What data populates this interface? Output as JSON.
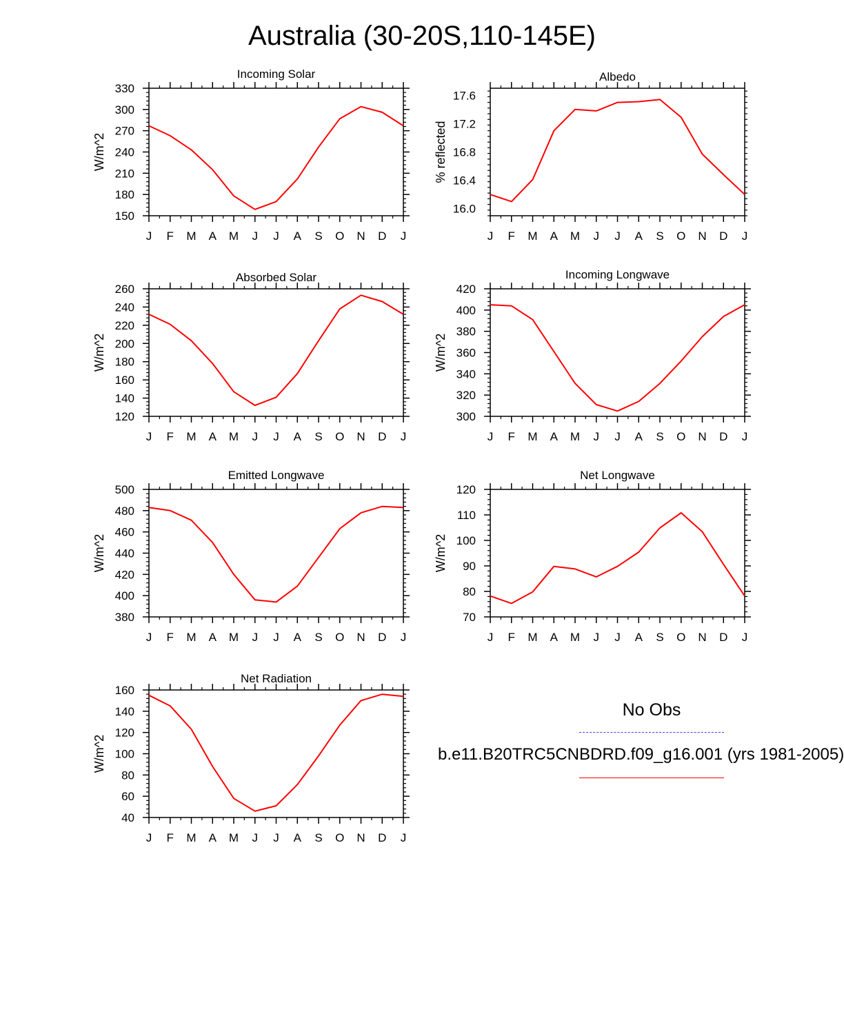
{
  "main_title": "Australia (30-20S,110-145E)",
  "legend": {
    "obs_label": "No Obs",
    "model_label": "b.e11.B20TRC5CNBDRD.f09_g16.001 (yrs 1981-2005)",
    "obs_color": "#3a3aff",
    "model_color": "#ff0000"
  },
  "chart_data": [
    {
      "type": "line",
      "title": "Incoming Solar",
      "ylabel": "W/m^2",
      "categories": [
        "J",
        "F",
        "M",
        "A",
        "M",
        "J",
        "J",
        "A",
        "S",
        "O",
        "N",
        "D",
        "J"
      ],
      "ylim": [
        150,
        330
      ],
      "yticks": [
        150,
        180,
        210,
        240,
        270,
        300,
        330
      ],
      "ytick_labels": [
        "150",
        "180",
        "210",
        "240",
        "270",
        "300",
        "330"
      ],
      "series": [
        {
          "name": "b.e11.B20TRC5CNBDRD.f09_g16.001",
          "color": "#ff0000",
          "values": [
            277,
            263,
            243,
            215,
            178,
            159,
            170,
            202,
            247,
            287,
            304,
            296,
            277
          ]
        }
      ]
    },
    {
      "type": "line",
      "title": "Albedo",
      "ylabel": "% reflected",
      "categories": [
        "J",
        "F",
        "M",
        "A",
        "M",
        "J",
        "J",
        "A",
        "S",
        "O",
        "N",
        "D",
        "J"
      ],
      "ylim": [
        15.9,
        17.7
      ],
      "yticks": [
        16.0,
        16.4,
        16.8,
        17.2,
        17.6
      ],
      "ytick_labels": [
        "16.0",
        "16.4",
        "16.8",
        "17.2",
        "17.6"
      ],
      "series": [
        {
          "name": "b.e11.B20TRC5CNBDRD.f09_g16.001",
          "color": "#ff0000",
          "values": [
            16.2,
            16.1,
            16.41,
            17.1,
            17.4,
            17.38,
            17.5,
            17.51,
            17.54,
            17.29,
            16.77,
            16.48,
            16.2
          ]
        }
      ]
    },
    {
      "type": "line",
      "title": "Absorbed Solar",
      "ylabel": "W/m^2",
      "categories": [
        "J",
        "F",
        "M",
        "A",
        "M",
        "J",
        "J",
        "A",
        "S",
        "O",
        "N",
        "D",
        "J"
      ],
      "ylim": [
        120,
        260
      ],
      "yticks": [
        120,
        140,
        160,
        180,
        200,
        220,
        240,
        260
      ],
      "ytick_labels": [
        "120",
        "140",
        "160",
        "180",
        "200",
        "220",
        "240",
        "260"
      ],
      "series": [
        {
          "name": "b.e11.B20TRC5CNBDRD.f09_g16.001",
          "color": "#ff0000",
          "values": [
            232,
            221,
            203,
            178,
            147,
            132,
            141,
            167,
            203,
            238,
            253,
            246,
            232
          ]
        }
      ]
    },
    {
      "type": "line",
      "title": "Incoming Longwave",
      "ylabel": "W/m^2",
      "categories": [
        "J",
        "F",
        "M",
        "A",
        "M",
        "J",
        "J",
        "A",
        "S",
        "O",
        "N",
        "D",
        "J"
      ],
      "ylim": [
        300,
        420
      ],
      "yticks": [
        300,
        320,
        340,
        360,
        380,
        400,
        420
      ],
      "ytick_labels": [
        "300",
        "320",
        "340",
        "360",
        "380",
        "400",
        "420"
      ],
      "series": [
        {
          "name": "b.e11.B20TRC5CNBDRD.f09_g16.001",
          "color": "#ff0000",
          "values": [
            405,
            404,
            391,
            361,
            331,
            311,
            305,
            314,
            331,
            352,
            375,
            394,
            405
          ]
        }
      ]
    },
    {
      "type": "line",
      "title": "Emitted Longwave",
      "ylabel": "W/m^2",
      "categories": [
        "J",
        "F",
        "M",
        "A",
        "M",
        "J",
        "J",
        "A",
        "S",
        "O",
        "N",
        "D",
        "J"
      ],
      "ylim": [
        380,
        500
      ],
      "yticks": [
        380,
        400,
        420,
        440,
        460,
        480,
        500
      ],
      "ytick_labels": [
        "380",
        "400",
        "420",
        "440",
        "460",
        "480",
        "500"
      ],
      "series": [
        {
          "name": "b.e11.B20TRC5CNBDRD.f09_g16.001",
          "color": "#ff0000",
          "values": [
            483,
            480,
            471,
            450,
            420,
            396,
            394,
            409,
            436,
            463,
            478,
            484,
            483
          ]
        }
      ]
    },
    {
      "type": "line",
      "title": "Net Longwave",
      "ylabel": "W/m^2",
      "categories": [
        "J",
        "F",
        "M",
        "A",
        "M",
        "J",
        "J",
        "A",
        "S",
        "O",
        "N",
        "D",
        "J"
      ],
      "ylim": [
        70,
        120
      ],
      "yticks": [
        70,
        80,
        90,
        100,
        110,
        120
      ],
      "ytick_labels": [
        "70",
        "80",
        "90",
        "100",
        "110",
        "120"
      ],
      "series": [
        {
          "name": "b.e11.B20TRC5CNBDRD.f09_g16.001",
          "color": "#ff0000",
          "values": [
            78.2,
            75.3,
            79.8,
            89.8,
            88.8,
            85.7,
            89.8,
            95.4,
            104.9,
            110.8,
            103.4,
            90.6,
            78.2
          ]
        }
      ]
    },
    {
      "type": "line",
      "title": "Net Radiation",
      "ylabel": "W/m^2",
      "categories": [
        "J",
        "F",
        "M",
        "A",
        "M",
        "J",
        "J",
        "A",
        "S",
        "O",
        "N",
        "D",
        "J"
      ],
      "ylim": [
        40,
        160
      ],
      "yticks": [
        40,
        60,
        80,
        100,
        120,
        140,
        160
      ],
      "ytick_labels": [
        "40",
        "60",
        "80",
        "100",
        "120",
        "140",
        "160"
      ],
      "series": [
        {
          "name": "b.e11.B20TRC5CNBDRD.f09_g16.001",
          "color": "#ff0000",
          "values": [
            155,
            145,
            123,
            88,
            58,
            46,
            51,
            71,
            98,
            127,
            150,
            156,
            154
          ]
        }
      ]
    }
  ]
}
